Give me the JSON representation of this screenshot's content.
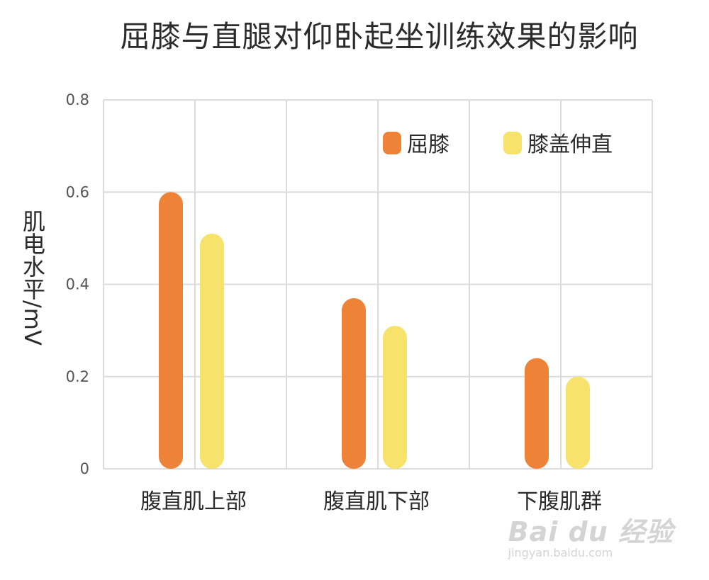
{
  "chart_data": {
    "type": "bar",
    "title": "屈膝与直腿对仰卧起坐训练效果的影响",
    "ylabel": "肌电水平/mV",
    "xlabel": "",
    "categories": [
      "腹直肌上部",
      "腹直肌下部",
      "下腹肌群"
    ],
    "series": [
      {
        "name": "屈膝",
        "values": [
          0.6,
          0.37,
          0.24
        ],
        "color": "#EE8236"
      },
      {
        "name": "膝盖伸直",
        "values": [
          0.51,
          0.31,
          0.2
        ],
        "color": "#F7E36C"
      }
    ],
    "ylim": [
      0,
      0.8
    ],
    "yticks": [
      "0",
      "0.2",
      "0.4",
      "0.6",
      "0.8"
    ],
    "grid": true,
    "legend_position": "top-right"
  },
  "watermark": {
    "logo": "Bai du 经验",
    "url": "jingyan.baidu.com"
  }
}
